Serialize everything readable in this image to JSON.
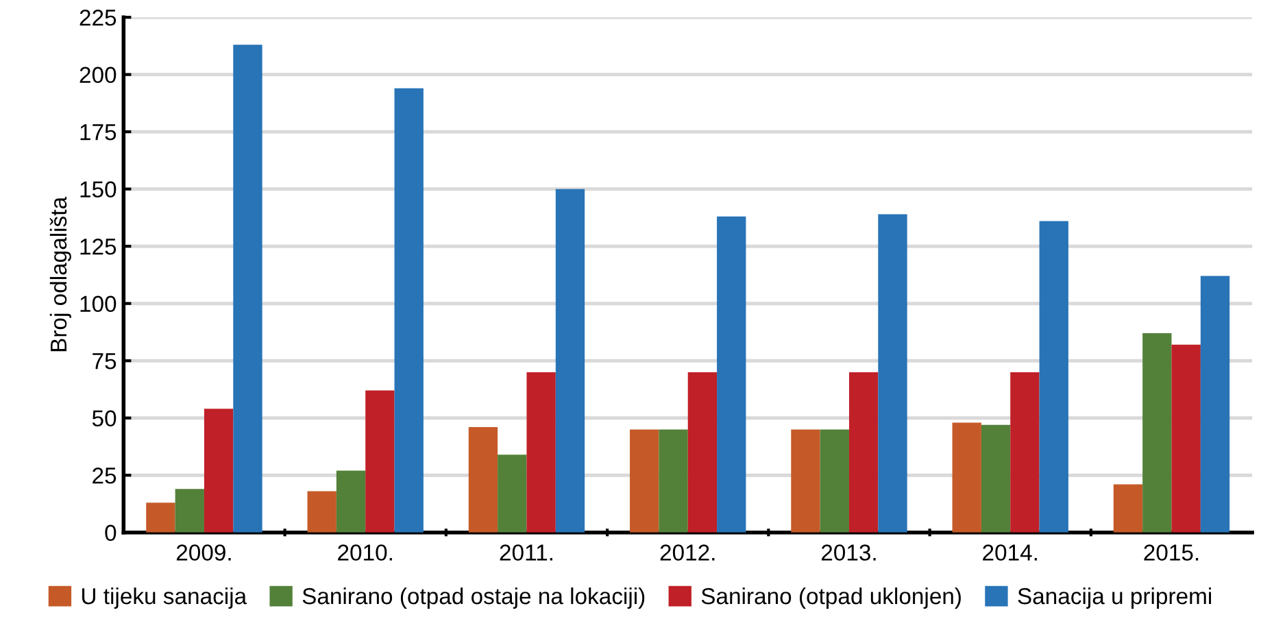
{
  "chart_data": {
    "type": "bar",
    "ylabel": "Broj odlagališta",
    "categories": [
      "2009.",
      "2010.",
      "2011.",
      "2012.",
      "2013.",
      "2014.",
      "2015."
    ],
    "series": [
      {
        "name": "U tijeku sanacija",
        "color": "#c55a28",
        "values": [
          13,
          18,
          46,
          45,
          45,
          48,
          21
        ]
      },
      {
        "name": "Sanirano (otpad ostaje na lokaciji)",
        "color": "#538139",
        "values": [
          19,
          27,
          34,
          45,
          45,
          47,
          87
        ]
      },
      {
        "name": "Sanirano (otpad uklonjen)",
        "color": "#c02027",
        "values": [
          54,
          62,
          70,
          70,
          70,
          70,
          82
        ]
      },
      {
        "name": "Sanacija u pripremi",
        "color": "#2874b7",
        "values": [
          213,
          194,
          150,
          138,
          139,
          136,
          112
        ]
      }
    ],
    "ylim": [
      0,
      225
    ],
    "yticks": [
      0,
      25,
      50,
      75,
      100,
      125,
      150,
      175,
      200,
      225
    ],
    "grid": "y",
    "legend": "bottom"
  }
}
